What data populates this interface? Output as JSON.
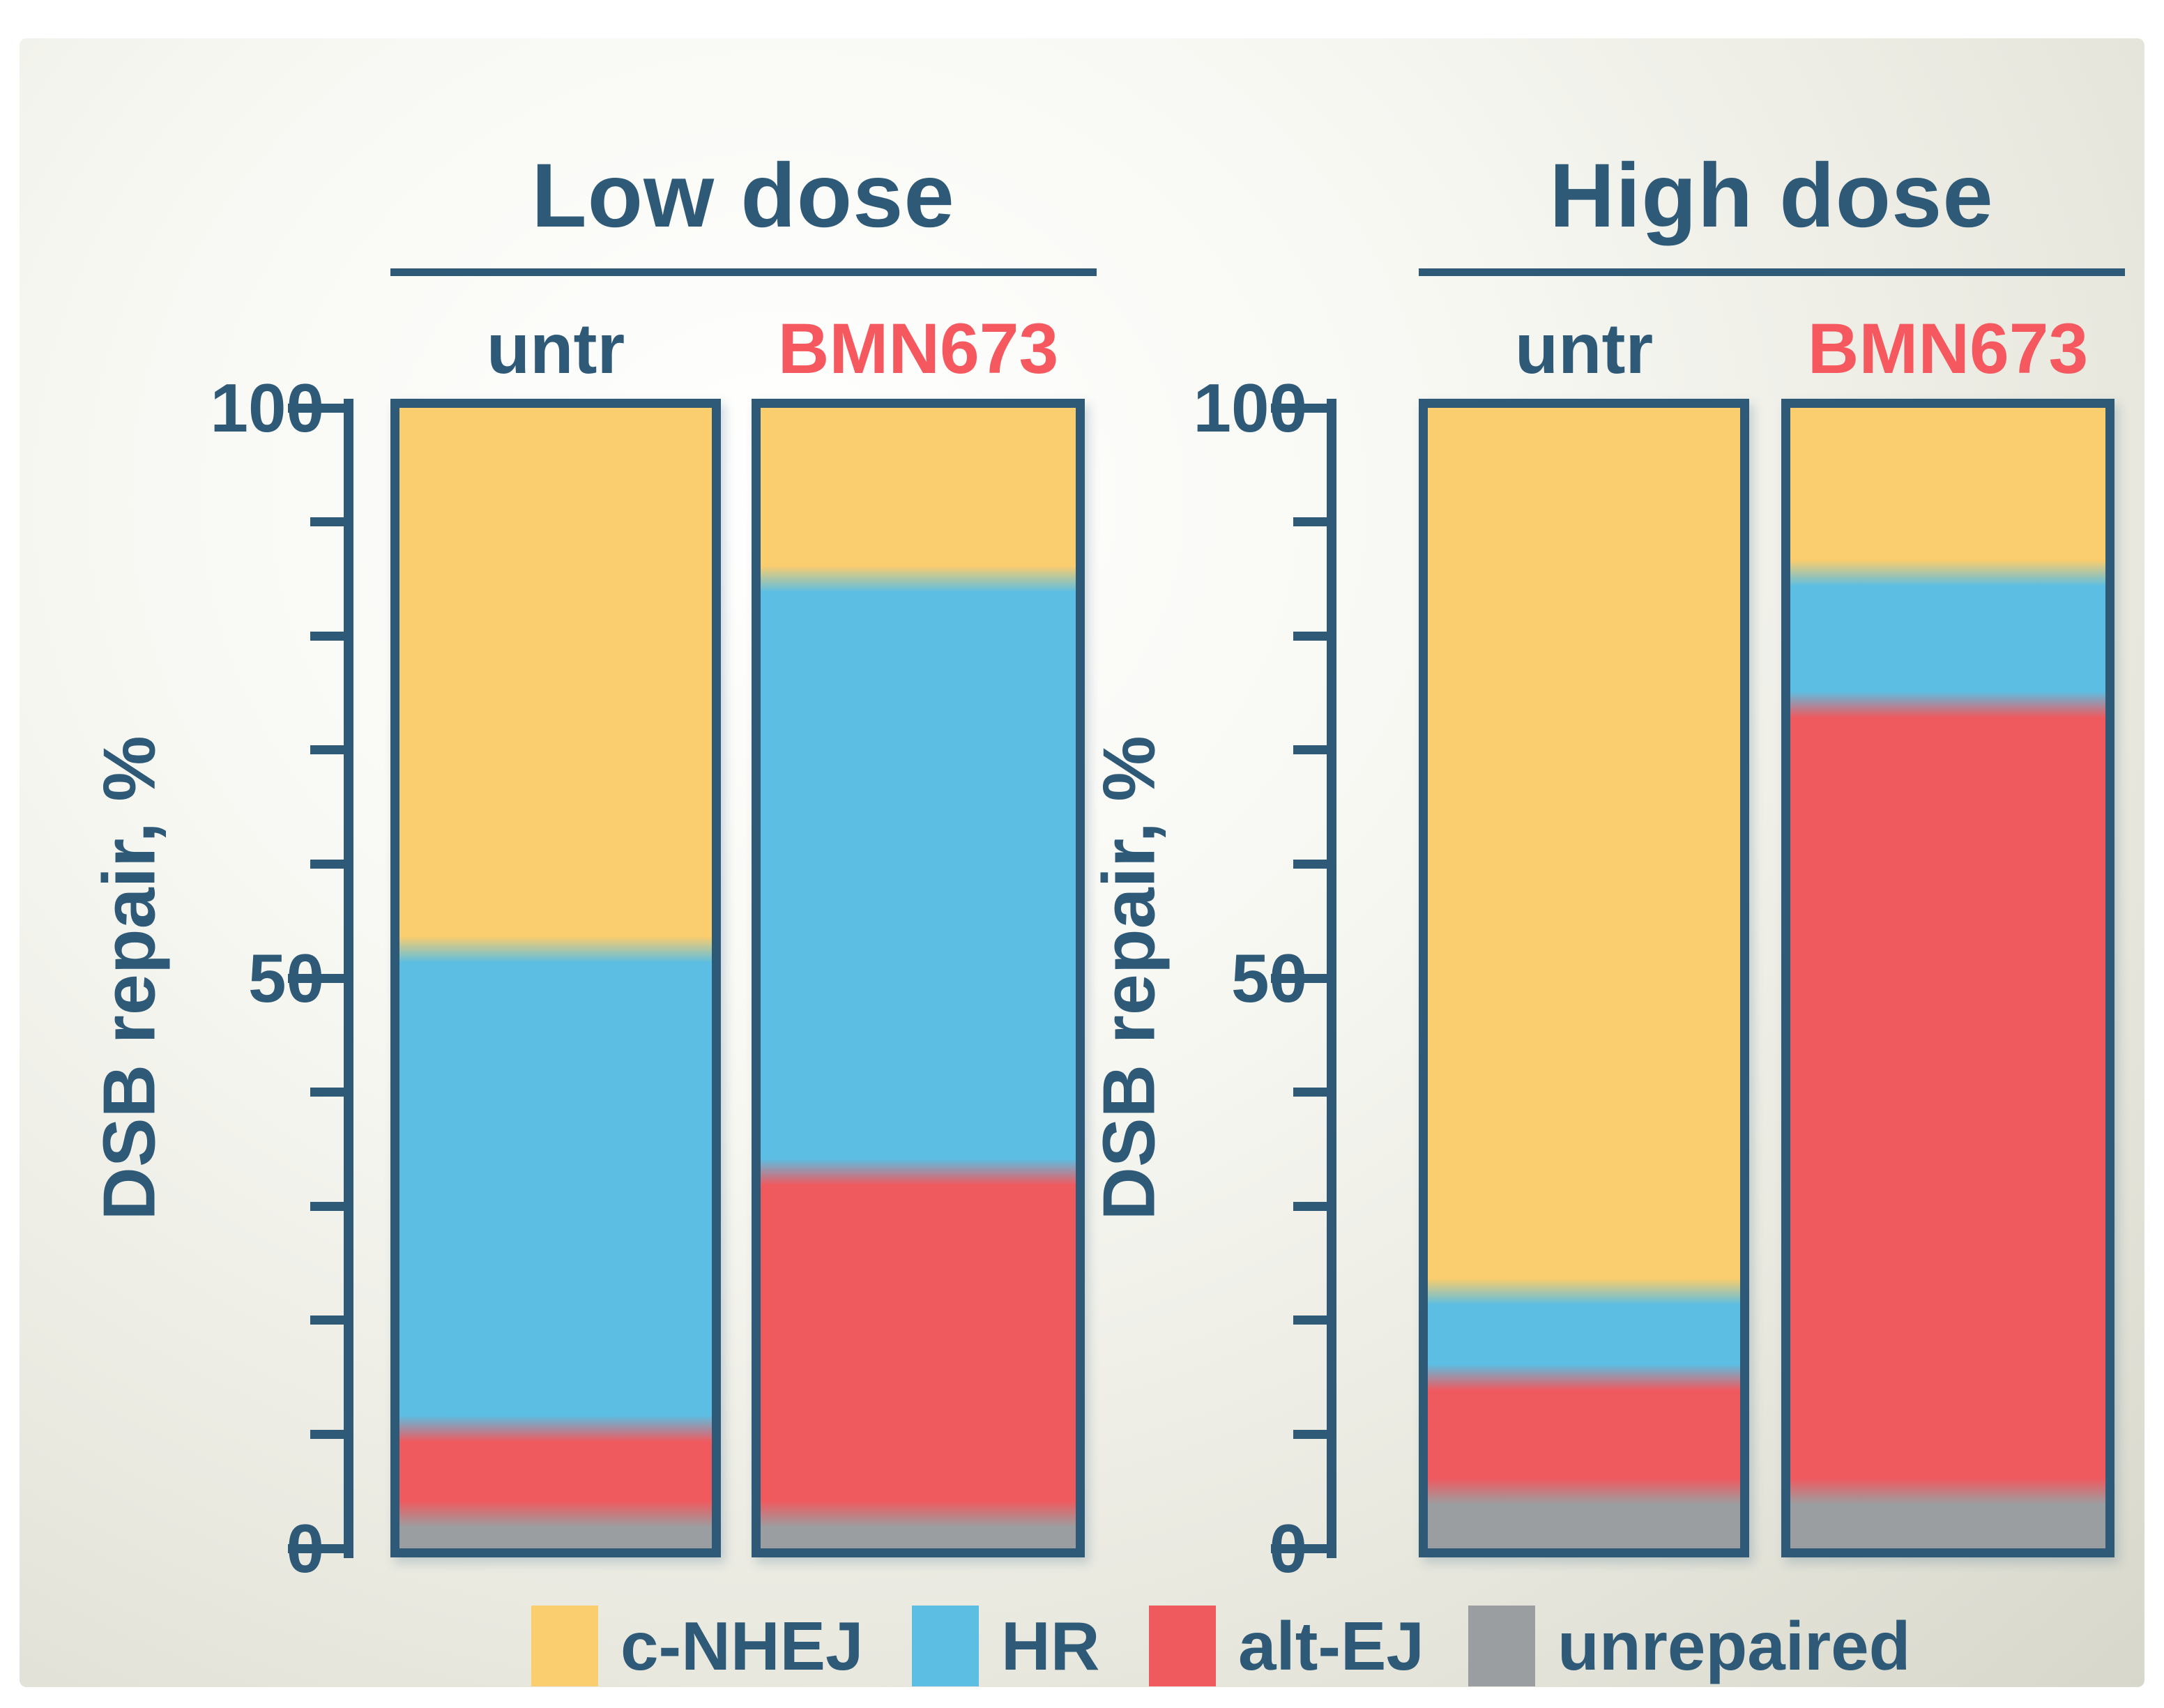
{
  "colors": {
    "navy": "#2E5A77",
    "yellow": "#FACD6E",
    "blue": "#5CBEE2",
    "red": "#EF5A5F",
    "gray": "#9B9EA0",
    "bmn_label_red": "#F5595F",
    "page_background": "#FFFFFF",
    "panel_background_edge": "#D7D7CB"
  },
  "chart_data": {
    "type": "bar",
    "stacked": true,
    "segment_order": "top-to-bottom",
    "ylabel": "DSB repair, %",
    "ylim": [
      0,
      100
    ],
    "yticks_labeled": [
      100,
      50,
      0
    ],
    "minor_tick_step": 10,
    "grid": false,
    "legend_position": "bottom",
    "series": [
      {
        "name": "c-NHEJ",
        "color": "#FACD6E"
      },
      {
        "name": "HR",
        "color": "#5CBEE2"
      },
      {
        "name": "alt-EJ",
        "color": "#EF5A5F"
      },
      {
        "name": "unrepaired",
        "color": "#9B9EA0"
      }
    ],
    "groups": [
      {
        "title": "Low dose",
        "bars": [
          {
            "label": "untr",
            "label_color": "#2E5A77",
            "values": {
              "c-NHEJ": 47.5,
              "HR": 42,
              "alt-EJ": 7.5,
              "unrepaired": 3
            }
          },
          {
            "label": "BMN673",
            "label_color": "#F5595F",
            "values": {
              "c-NHEJ": 15,
              "HR": 52,
              "alt-EJ": 30,
              "unrepaired": 3
            }
          }
        ]
      },
      {
        "title": "High dose",
        "bars": [
          {
            "label": "untr",
            "label_color": "#2E5A77",
            "values": {
              "c-NHEJ": 77.5,
              "HR": 7.5,
              "alt-EJ": 10,
              "unrepaired": 5
            }
          },
          {
            "label": "BMN673",
            "label_color": "#F5595F",
            "values": {
              "c-NHEJ": 14.5,
              "HR": 11.5,
              "alt-EJ": 69,
              "unrepaired": 5
            }
          }
        ]
      }
    ]
  },
  "legend": {
    "items": [
      {
        "label": "c-NHEJ",
        "color": "#FACD6E"
      },
      {
        "label": "HR",
        "color": "#5CBEE2"
      },
      {
        "label": "alt-EJ",
        "color": "#EF5A5F"
      },
      {
        "label": "unrepaired",
        "color": "#9B9EA0"
      }
    ]
  }
}
